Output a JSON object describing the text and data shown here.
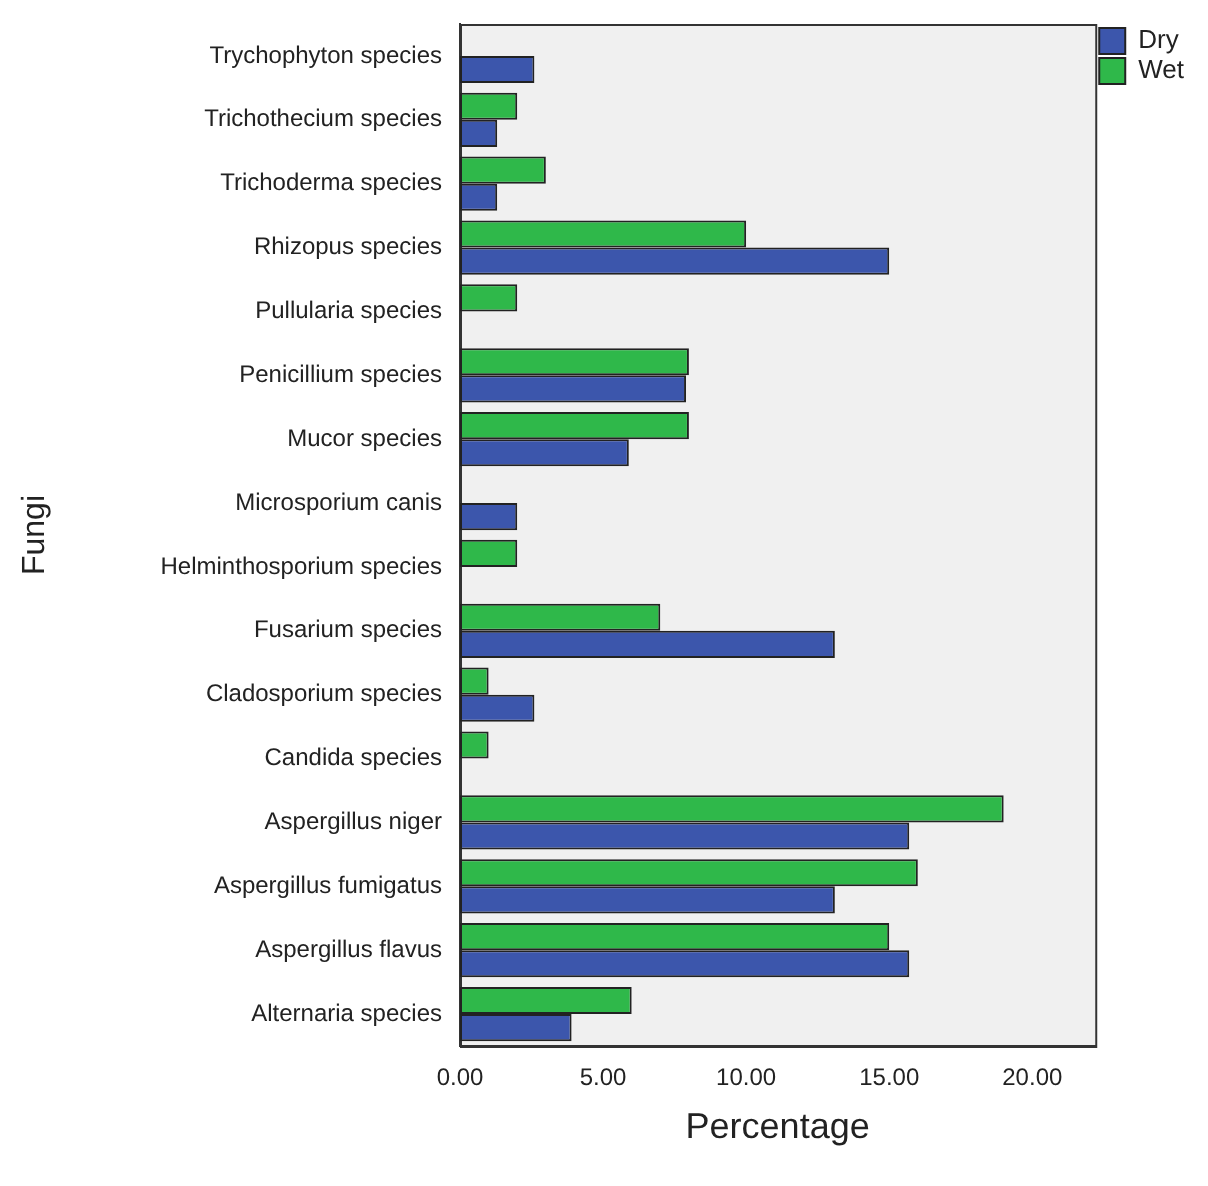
{
  "chart_data": {
    "type": "bar",
    "orientation": "horizontal",
    "xlabel": "Percentage",
    "ylabel": "Fungi",
    "categories": [
      "Trychophyton species",
      "Trichothecium species",
      "Trichoderma species",
      "Rhizopus species",
      "Pullularia species",
      "Penicillium species",
      "Mucor species",
      "Microsporium canis",
      "Helminthosporium species",
      "Fusarium species",
      "Cladosporium species",
      "Candida species",
      "Aspergillus niger",
      "Aspergillus fumigatus",
      "Aspergillus flavus",
      "Alternaria species"
    ],
    "series": [
      {
        "name": "Dry",
        "color": "#3c56ac",
        "values": [
          2.6,
          1.3,
          1.3,
          15.0,
          null,
          7.9,
          5.9,
          2.0,
          null,
          13.1,
          2.6,
          null,
          15.7,
          13.1,
          15.7,
          3.9
        ]
      },
      {
        "name": "Wet",
        "color": "#2fb84a",
        "values": [
          null,
          2.0,
          3.0,
          10.0,
          2.0,
          8.0,
          8.0,
          null,
          2.0,
          7.0,
          1.0,
          1.0,
          19.0,
          16.0,
          15.0,
          6.0
        ]
      }
    ],
    "xlim": [
      0,
      22.2
    ],
    "xticks": [
      {
        "value": 0,
        "label": "0.00"
      },
      {
        "value": 5,
        "label": "5.00"
      },
      {
        "value": 10,
        "label": "10.00"
      },
      {
        "value": 15,
        "label": "15.00"
      },
      {
        "value": 20,
        "label": "20.00"
      }
    ],
    "grid": false,
    "legend": "top right"
  }
}
